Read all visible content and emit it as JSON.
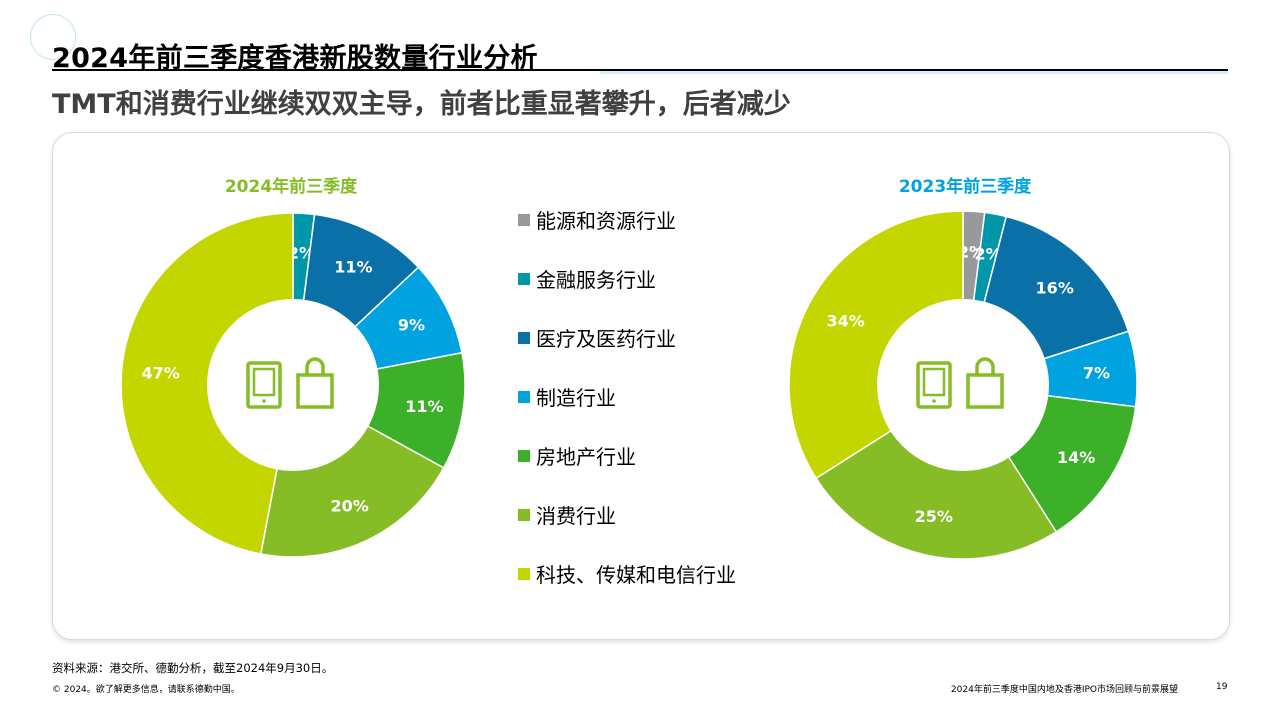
{
  "title": "2024年前三季度香港新股数量行业分析",
  "subtitle": "TMT和消费行业继续双双主导，前者比重显著攀升，后者减少",
  "legend": [
    {
      "label": "能源和资源行业",
      "color": "#97999b"
    },
    {
      "label": "金融服务行业",
      "color": "#0097a9"
    },
    {
      "label": "医疗及医药行业",
      "color": "#0a70a8"
    },
    {
      "label": "制造行业",
      "color": "#00a3e0"
    },
    {
      "label": "房地产行业",
      "color": "#3cb028"
    },
    {
      "label": "消费行业",
      "color": "#86bc25"
    },
    {
      "label": "科技、传媒和电信行业",
      "color": "#c4d600"
    }
  ],
  "chart_data": [
    {
      "type": "pie",
      "title": "2024年前三季度",
      "title_color": "#86bc25",
      "categories": [
        "能源和资源行业",
        "金融服务行业",
        "医疗及医药行业",
        "制造行业",
        "房地产行业",
        "消费行业",
        "科技、传媒和电信行业"
      ],
      "values": [
        0,
        2,
        11,
        9,
        11,
        20,
        47
      ],
      "labels": [
        "",
        "2%",
        "11%",
        "9%",
        "11%",
        "20%",
        "47%"
      ],
      "colors": [
        "#97999b",
        "#0097a9",
        "#0a70a8",
        "#00a3e0",
        "#3cb028",
        "#86bc25",
        "#c4d600"
      ],
      "center_icons": [
        "tablet-icon",
        "shopping-bag-icon"
      ]
    },
    {
      "type": "pie",
      "title": "2023年前三季度",
      "title_color": "#00a3e0",
      "categories": [
        "能源和资源行业",
        "金融服务行业",
        "医疗及医药行业",
        "制造行业",
        "房地产行业",
        "消费行业",
        "科技、传媒和电信行业"
      ],
      "values": [
        2,
        2,
        16,
        7,
        14,
        25,
        34
      ],
      "labels": [
        "2%",
        "2%",
        "16%",
        "7%",
        "14%",
        "25%",
        "34%"
      ],
      "colors": [
        "#97999b",
        "#0097a9",
        "#0a70a8",
        "#00a3e0",
        "#3cb028",
        "#86bc25",
        "#c4d600"
      ],
      "center_icons": [
        "tablet-icon",
        "shopping-bag-icon"
      ]
    }
  ],
  "footer": {
    "source": "资料来源：港交所、德勤分析，截至2024年9月30日。",
    "copyright": "© 2024。欲了解更多信息，请联系德勤中国。",
    "report_name": "2024年前三季度中国内地及香港IPO市场回顾与前景展望",
    "page_number": "19"
  },
  "icon_color": "#86bc25"
}
